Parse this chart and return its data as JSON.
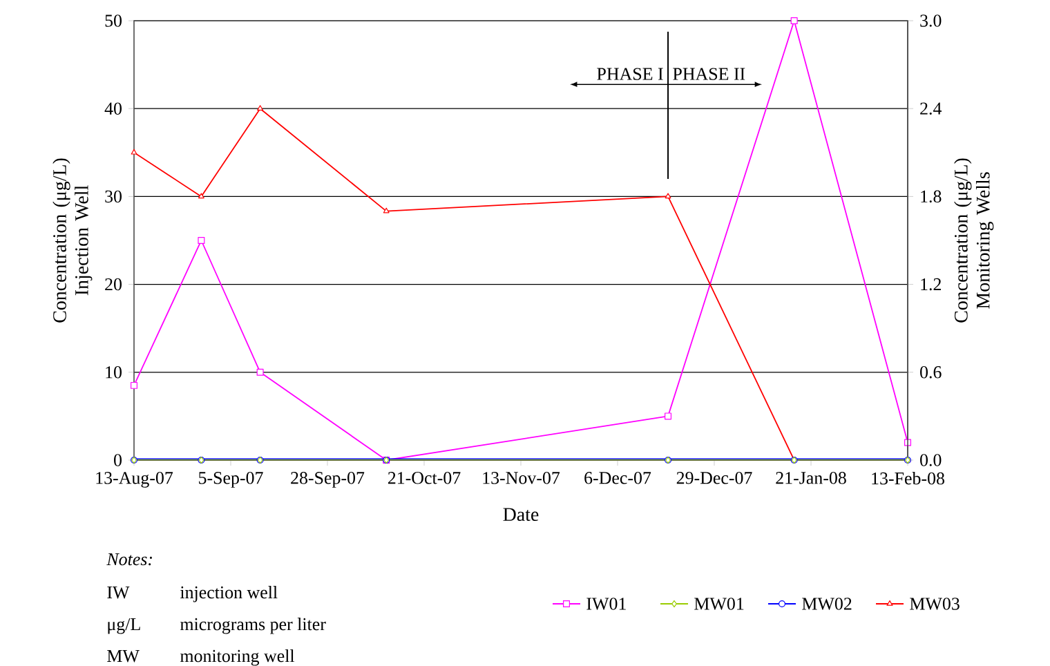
{
  "chart_data": {
    "type": "line",
    "xlabel": "Date",
    "ylabel": "Concentration (μg/L) Injection Well",
    "y2label": "Concentration (μg/L) Monitoring Wells",
    "x": [
      "2007-08-13",
      "2007-08-29",
      "2007-09-12",
      "2007-10-12",
      "2007-12-18",
      "2008-01-17",
      "2008-02-13"
    ],
    "series": [
      {
        "name": "IW01",
        "color": "#ff00ff",
        "marker": "square",
        "values": [
          8.5,
          25,
          10,
          0,
          5,
          50,
          2
        ]
      },
      {
        "name": "MW01",
        "color": "#99cc00",
        "marker": "diamond",
        "axis": "y2",
        "values": [
          0,
          0,
          0,
          0,
          0,
          0,
          0
        ]
      },
      {
        "name": "MW02",
        "color": "#0000ff",
        "marker": "circle",
        "axis": "y2",
        "values": [
          0,
          0,
          0,
          0,
          0,
          0,
          0
        ]
      },
      {
        "name": "MW03",
        "color": "#ff0000",
        "marker": "triangle",
        "axis": "y2",
        "values": [
          2.1,
          1.8,
          2.4,
          1.7,
          1.8,
          0,
          0
        ]
      }
    ],
    "xlim": [
      "2007-08-13",
      "2008-02-13"
    ],
    "xticks": [
      {
        "value": "2007-08-13",
        "label": "13-Aug-07"
      },
      {
        "value": "2007-09-05",
        "label": "5-Sep-07"
      },
      {
        "value": "2007-09-28",
        "label": "28-Sep-07"
      },
      {
        "value": "2007-10-21",
        "label": "21-Oct-07"
      },
      {
        "value": "2007-11-13",
        "label": "13-Nov-07"
      },
      {
        "value": "2007-12-06",
        "label": "6-Dec-07"
      },
      {
        "value": "2007-12-29",
        "label": "29-Dec-07"
      },
      {
        "value": "2008-01-21",
        "label": "21-Jan-08"
      },
      {
        "value": "2008-02-13",
        "label": "13-Feb-08"
      }
    ],
    "ylim": [
      0,
      50
    ],
    "yticks": [
      0,
      10,
      20,
      30,
      40,
      50
    ],
    "y2lim": [
      0,
      3
    ],
    "y2ticks": [
      {
        "value": 0,
        "label": "0.0"
      },
      {
        "value": 0.6,
        "label": "0.6"
      },
      {
        "value": 1.2,
        "label": "1.2"
      },
      {
        "value": 1.8,
        "label": "1.8"
      },
      {
        "value": 2.4,
        "label": "2.4"
      },
      {
        "value": 3,
        "label": "3.0"
      }
    ],
    "ref_lines": [
      {
        "axis": "x",
        "value": "2007-12-18",
        "color": "#000000"
      }
    ],
    "annotations": [
      "PHASE I",
      "PHASE II",
      "Notes:",
      "IW",
      "injection well",
      "μg/L",
      "micrograms per liter",
      "MW",
      "monitoring well"
    ],
    "grid": "y",
    "legend": "bottom",
    "line_style": "solid"
  }
}
